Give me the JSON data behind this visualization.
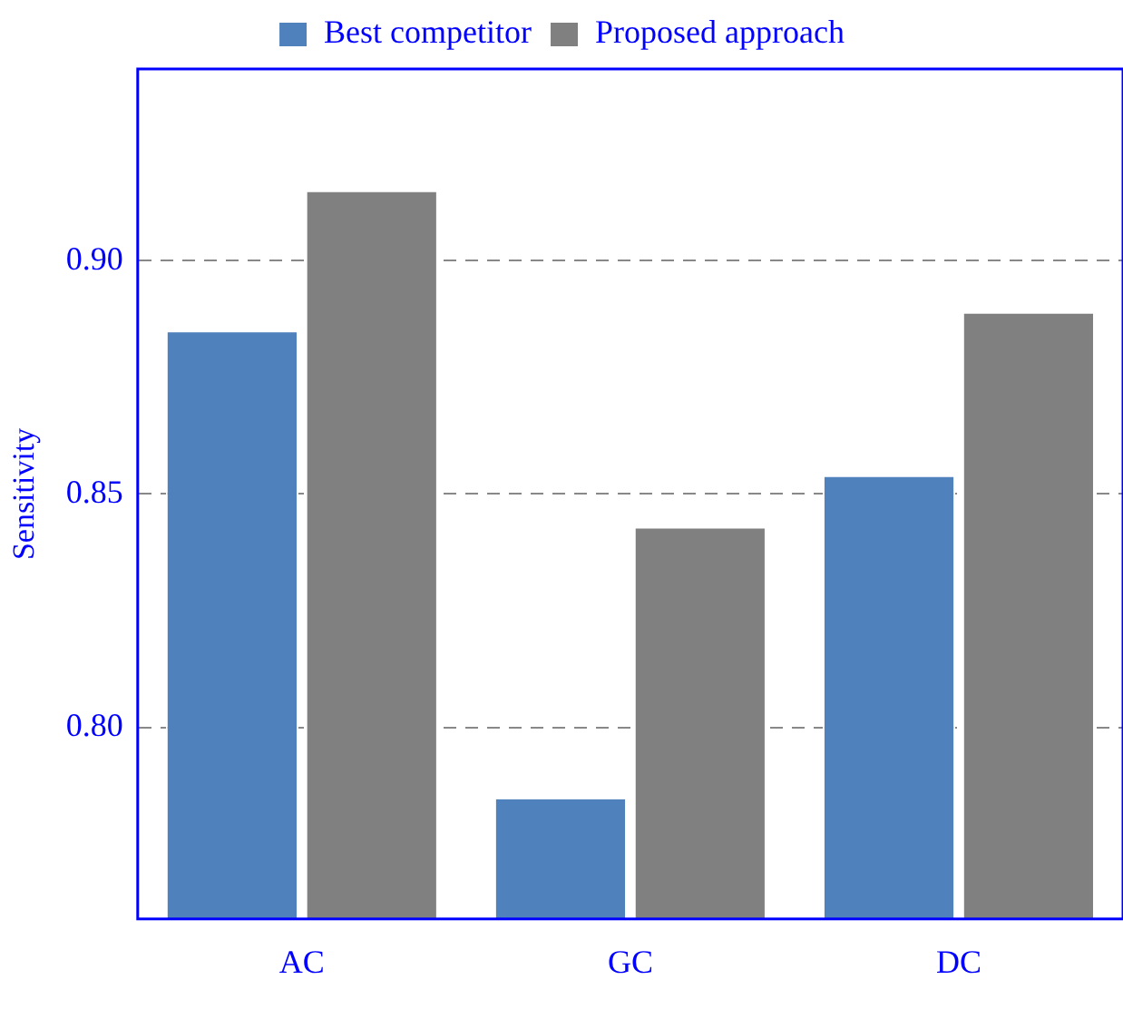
{
  "chart_data": {
    "type": "bar",
    "ylabel": "Sensitivity",
    "categories": [
      "AC",
      "GC",
      "DC"
    ],
    "series": [
      {
        "name": "Best competitor",
        "color": "#4f81bd",
        "values": [
          0.885,
          0.785,
          0.854
        ]
      },
      {
        "name": "Proposed approach",
        "color": "#808080",
        "values": [
          0.915,
          0.843,
          0.889
        ]
      }
    ],
    "ylim": [
      0.759,
      0.941
    ],
    "yticks": [
      {
        "value": 0.8,
        "label": "0.80"
      },
      {
        "value": 0.85,
        "label": "0.85"
      },
      {
        "value": 0.9,
        "label": "0.90"
      }
    ],
    "grid": "y",
    "legend": "top"
  }
}
